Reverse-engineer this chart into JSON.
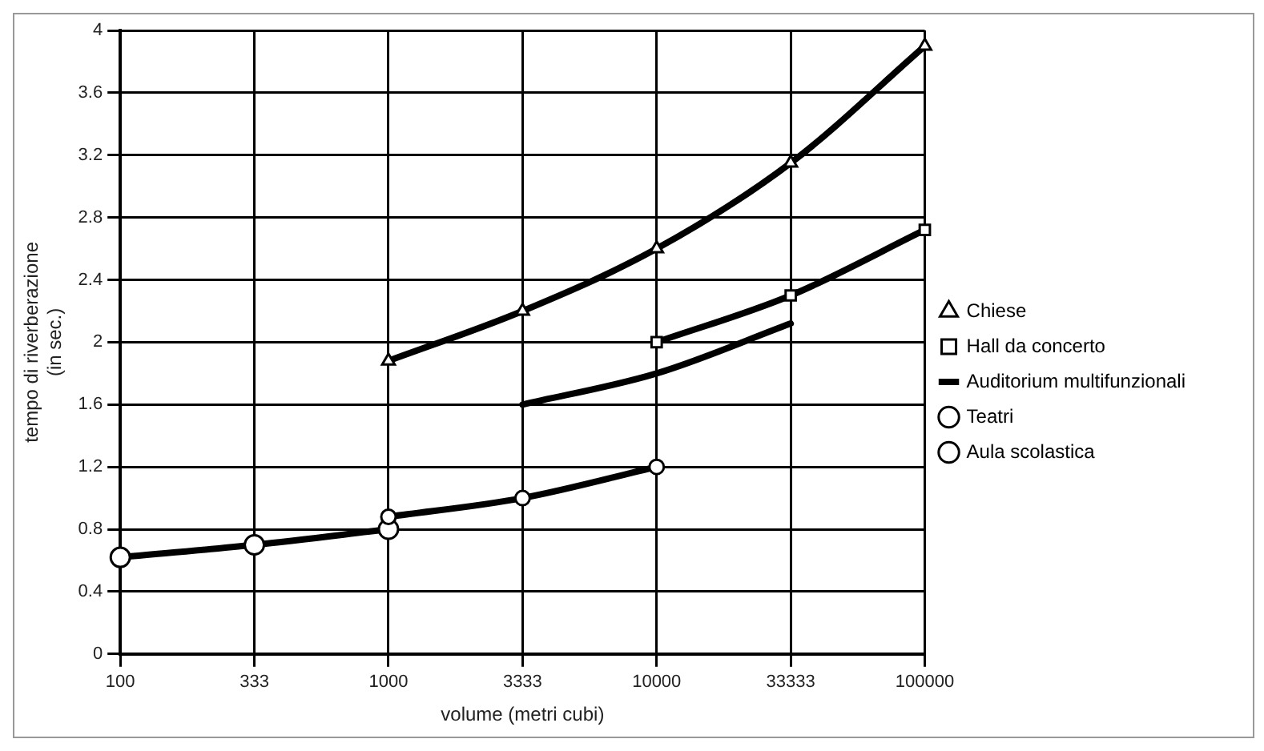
{
  "chart_data": {
    "type": "line",
    "xlabel": "volume (metri cubi)",
    "ylabel": "tempo di riverberazione\n(in sec.)",
    "categories": [
      "100",
      "333",
      "1000",
      "3333",
      "10000",
      "33333",
      "100000"
    ],
    "ylim": [
      0,
      4
    ],
    "yticks": [
      0,
      0.4,
      0.8,
      1.2,
      1.6,
      2,
      2.4,
      2.8,
      3.2,
      3.6,
      4
    ],
    "grid": true,
    "legend": "right",
    "series": [
      {
        "name": "Chiese",
        "color": "#000000",
        "marker": "triangle",
        "values": [
          null,
          null,
          1.88,
          2.2,
          2.6,
          3.15,
          3.9
        ]
      },
      {
        "name": "Hall da concerto",
        "color": "#000000",
        "marker": "square",
        "values": [
          null,
          null,
          null,
          null,
          2.0,
          2.3,
          2.72
        ]
      },
      {
        "name": "Auditorium multifunzionali",
        "color": "#000000",
        "marker": "none",
        "values": [
          null,
          null,
          null,
          1.6,
          1.8,
          2.12,
          null
        ]
      },
      {
        "name": "Teatri",
        "color": "#000000",
        "marker": "circle",
        "values": [
          null,
          null,
          0.88,
          1.0,
          1.2,
          null,
          null
        ]
      },
      {
        "name": "Aula scolastica",
        "color": "#000000",
        "marker": "circle",
        "values": [
          0.62,
          0.7,
          0.8,
          null,
          null,
          null,
          null
        ]
      }
    ]
  }
}
